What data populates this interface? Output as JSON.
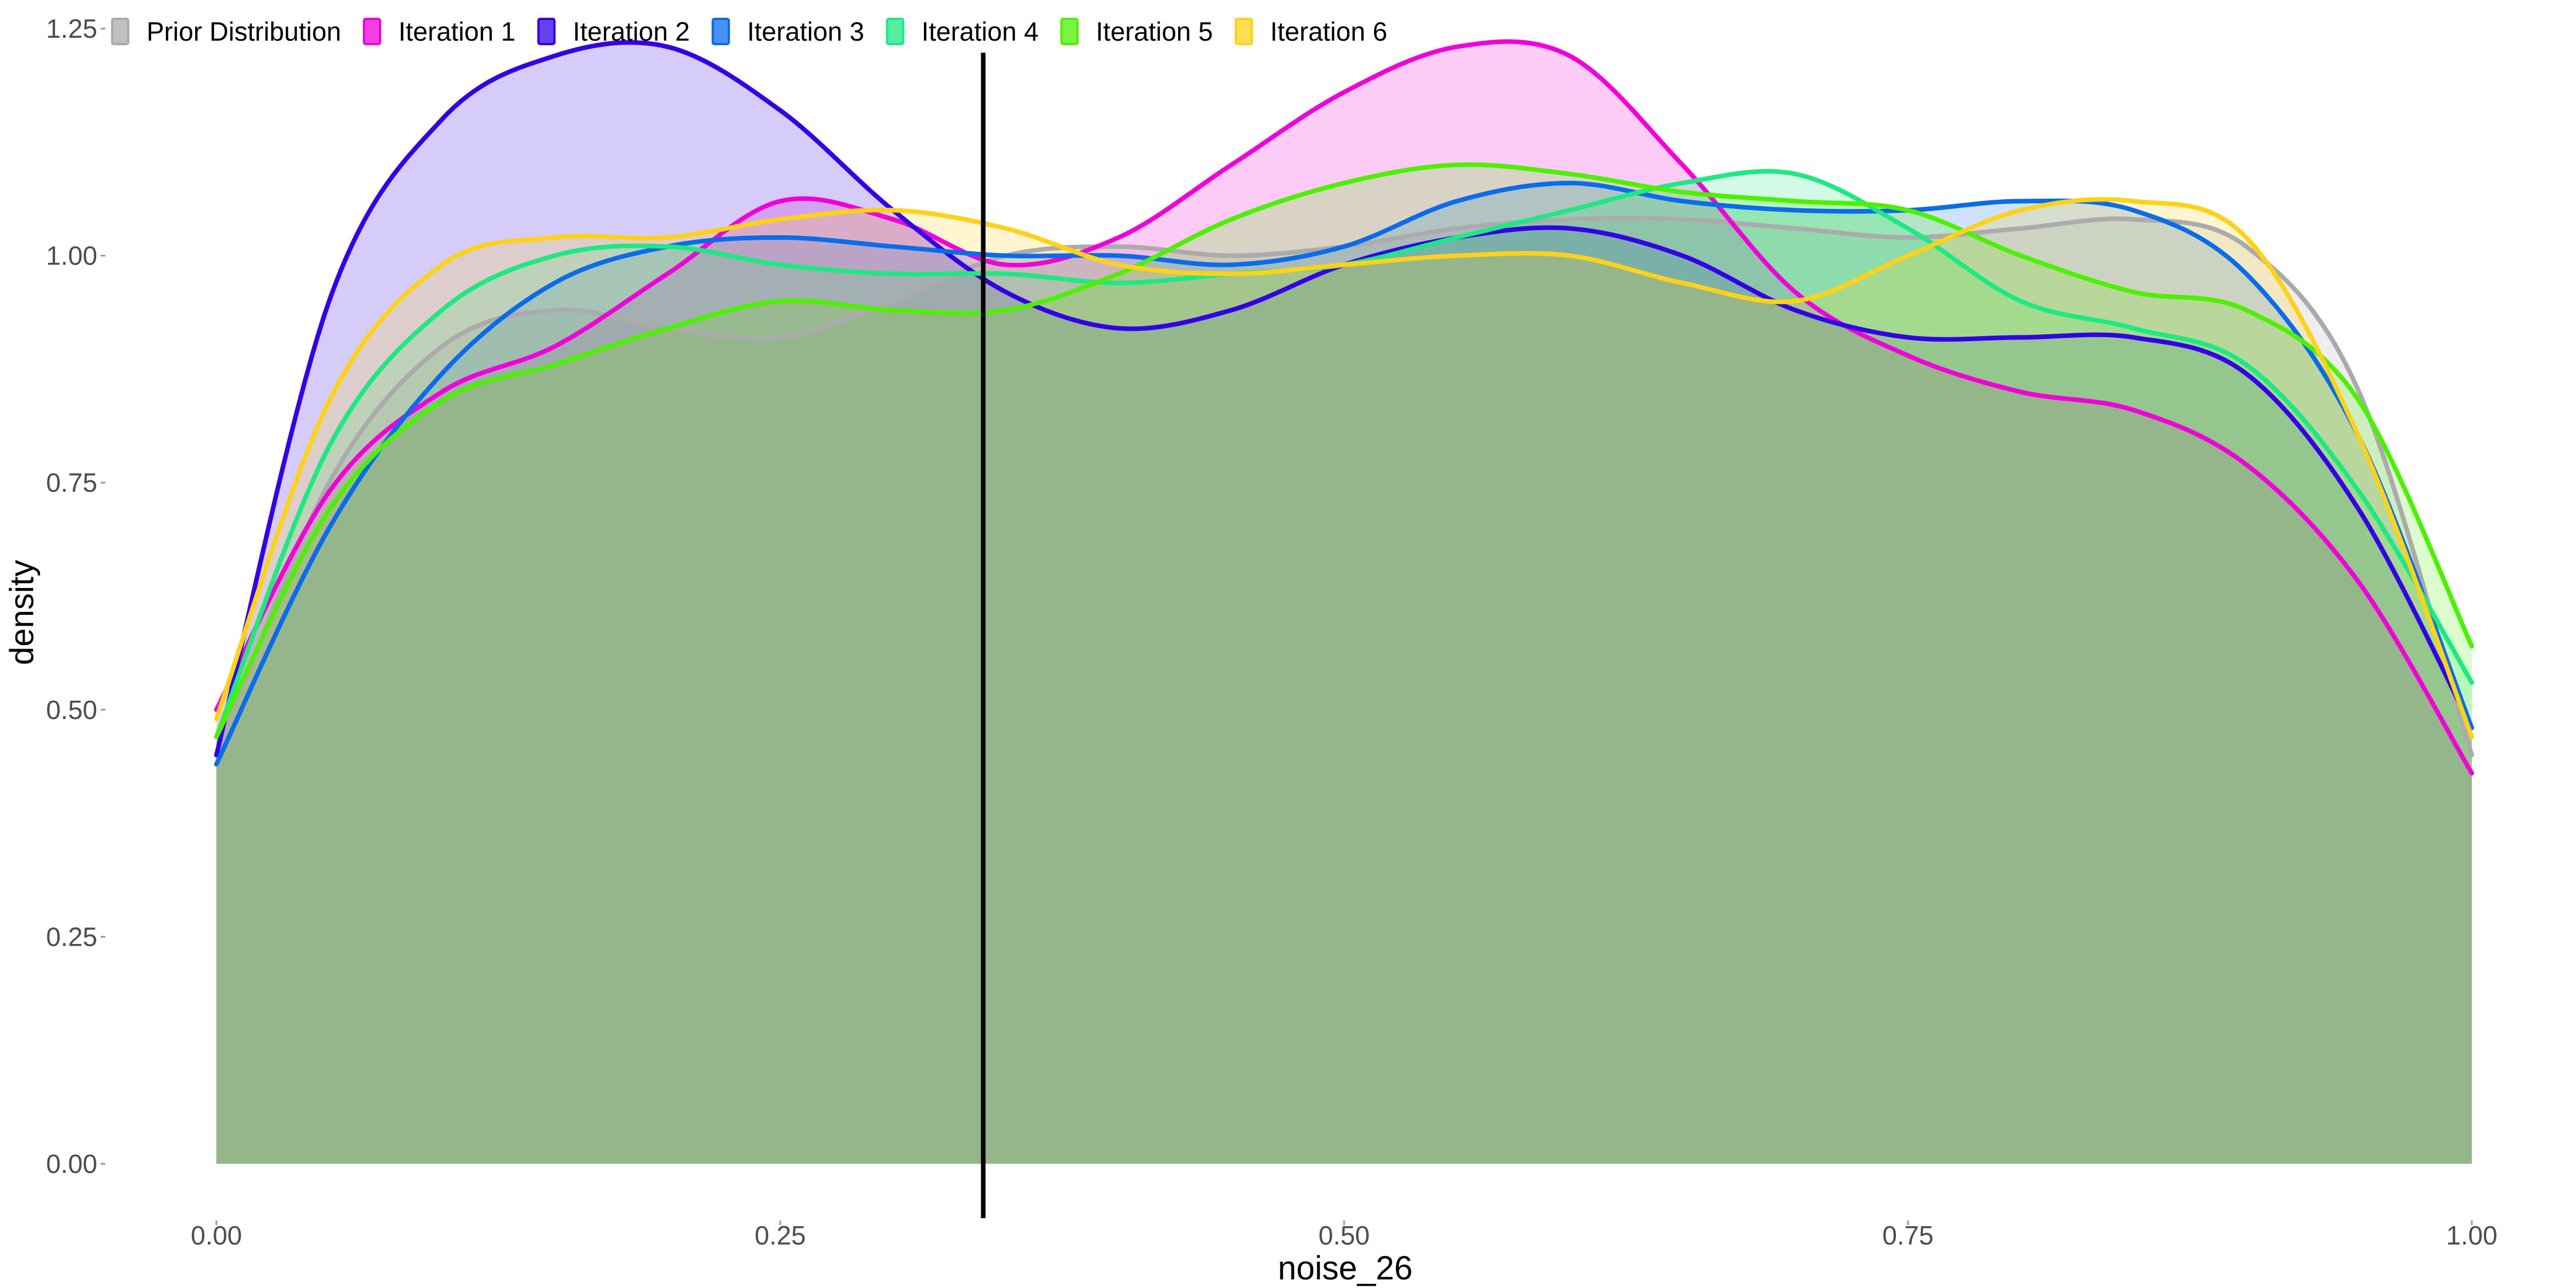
{
  "chart_data": {
    "type": "area",
    "xlabel": "noise_26",
    "ylabel": "density",
    "xlim": [
      0,
      1
    ],
    "ylim": [
      0,
      1.25
    ],
    "x_ticks": [
      {
        "value": 0,
        "label": "0.00"
      },
      {
        "value": 0.25,
        "label": "0.25"
      },
      {
        "value": 0.5,
        "label": "0.50"
      },
      {
        "value": 0.75,
        "label": "0.75"
      },
      {
        "value": 1,
        "label": "1.00"
      }
    ],
    "y_ticks": [
      {
        "value": 0,
        "label": "0.00"
      },
      {
        "value": 0.25,
        "label": "0.25"
      },
      {
        "value": 0.5,
        "label": "0.50"
      },
      {
        "value": 0.75,
        "label": "0.75"
      },
      {
        "value": 1,
        "label": "1.00"
      },
      {
        "value": 1.25,
        "label": "1.25"
      }
    ],
    "grid": false,
    "legend_position": "top",
    "reference_line_x": 0.34,
    "x": [
      0,
      0.05,
      0.1,
      0.15,
      0.2,
      0.25,
      0.3,
      0.35,
      0.4,
      0.45,
      0.5,
      0.55,
      0.6,
      0.65,
      0.7,
      0.75,
      0.8,
      0.85,
      0.9,
      0.95,
      1
    ],
    "series": [
      {
        "name": "Prior Distribution",
        "color": "#ABABAB",
        "values": [
          0.45,
          0.75,
          0.9,
          0.94,
          0.92,
          0.91,
          0.95,
          1.0,
          1.01,
          1.0,
          1.01,
          1.03,
          1.04,
          1.04,
          1.03,
          1.02,
          1.03,
          1.04,
          1.01,
          0.85,
          0.45
        ]
      },
      {
        "name": "Iteration 1",
        "color": "#F000D8",
        "values": [
          0.5,
          0.74,
          0.85,
          0.9,
          0.98,
          1.06,
          1.04,
          0.99,
          1.02,
          1.1,
          1.18,
          1.23,
          1.22,
          1.1,
          0.96,
          0.89,
          0.85,
          0.83,
          0.77,
          0.64,
          0.43
        ]
      },
      {
        "name": "Iteration 2",
        "color": "#3300E5",
        "values": [
          0.45,
          0.95,
          1.15,
          1.22,
          1.23,
          1.16,
          1.05,
          0.96,
          0.92,
          0.94,
          0.99,
          1.02,
          1.03,
          1.0,
          0.94,
          0.91,
          0.91,
          0.91,
          0.87,
          0.72,
          0.48
        ]
      },
      {
        "name": "Iteration 3",
        "color": "#0A6CEB",
        "values": [
          0.44,
          0.7,
          0.87,
          0.97,
          1.01,
          1.02,
          1.01,
          1.0,
          1.0,
          0.99,
          1.01,
          1.06,
          1.08,
          1.06,
          1.05,
          1.05,
          1.06,
          1.05,
          0.98,
          0.8,
          0.48
        ]
      },
      {
        "name": "Iteration 4",
        "color": "#1DE882",
        "values": [
          0.47,
          0.79,
          0.94,
          1.0,
          1.01,
          0.99,
          0.98,
          0.98,
          0.97,
          0.98,
          0.99,
          1.02,
          1.05,
          1.08,
          1.09,
          1.03,
          0.95,
          0.92,
          0.88,
          0.74,
          0.53
        ]
      },
      {
        "name": "Iteration 5",
        "color": "#4DF000",
        "values": [
          0.47,
          0.72,
          0.84,
          0.88,
          0.92,
          0.95,
          0.94,
          0.94,
          0.98,
          1.04,
          1.08,
          1.1,
          1.09,
          1.07,
          1.06,
          1.05,
          1.0,
          0.96,
          0.94,
          0.84,
          0.57
        ]
      },
      {
        "name": "Iteration 6",
        "color": "#FFD21A",
        "values": [
          0.49,
          0.84,
          0.99,
          1.02,
          1.02,
          1.04,
          1.05,
          1.03,
          0.99,
          0.98,
          0.99,
          1.0,
          1.0,
          0.97,
          0.95,
          1.0,
          1.05,
          1.06,
          1.02,
          0.8,
          0.47
        ]
      }
    ]
  }
}
